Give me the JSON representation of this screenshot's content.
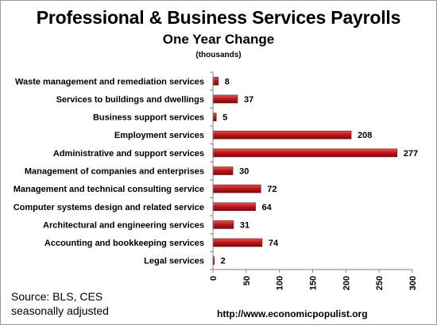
{
  "header": {
    "title": "Professional & Business Services Payrolls",
    "subtitle": "One Year Change",
    "units": "(thousands)"
  },
  "footer": {
    "source_line1": "Source:  BLS, CES",
    "source_line2": "seasonally adjusted",
    "url": "http://www.economicpopulist.org"
  },
  "colors": {
    "bar": "#c0171c",
    "bar_light": "#e05a5a",
    "bar_dark": "#7a0a0c",
    "axis": "#808080"
  },
  "chart_data": {
    "type": "bar",
    "orientation": "horizontal",
    "title": "Professional & Business Services Payrolls",
    "subtitle": "One Year Change",
    "units": "(thousands)",
    "categories": [
      "Waste management and remediation services",
      "Services to buildings and dwellings",
      "Business support services",
      "Employment services",
      "Administrative and support services",
      "Management of companies and enterprises",
      "Management and technical consulting service",
      "Computer systems design and related service",
      "Architectural and engineering services",
      "Accounting and bookkeeping services",
      "Legal services"
    ],
    "values": [
      8,
      37,
      5,
      208,
      277,
      30,
      72,
      64,
      31,
      74,
      2
    ],
    "value_labels": [
      "8",
      "37",
      "5",
      "208",
      "277",
      "30",
      "72",
      "64",
      "31",
      "74",
      "2"
    ],
    "xlim": [
      0,
      300
    ],
    "x_ticks": [
      0,
      50,
      100,
      150,
      200,
      250,
      300
    ],
    "x_tick_labels": [
      "0",
      "50",
      "100",
      "150",
      "200",
      "250",
      "300"
    ],
    "grid": false,
    "legend": "none"
  }
}
